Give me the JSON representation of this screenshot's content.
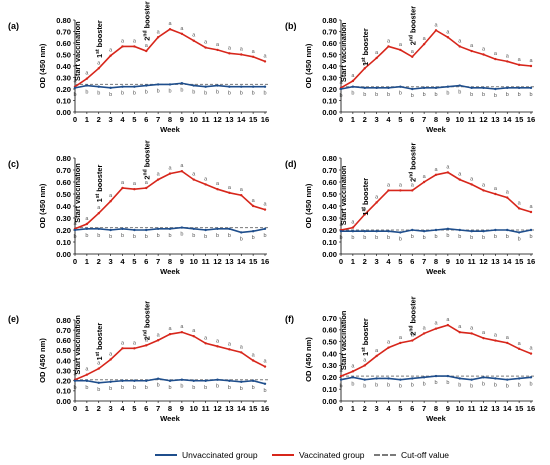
{
  "chart_data": [
    {
      "panel": "(a)",
      "type": "line",
      "ylabel": "OD (450 nm)",
      "xlabel": "Week",
      "ylim": [
        0,
        0.8
      ],
      "yticks": [
        "0.00",
        "0.10",
        "0.20",
        "0.30",
        "0.40",
        "0.50",
        "0.60",
        "0.70",
        "0.80"
      ],
      "x": [
        0,
        1,
        2,
        3,
        4,
        5,
        6,
        7,
        8,
        9,
        10,
        11,
        12,
        13,
        14,
        15,
        16
      ],
      "series": [
        {
          "name": "Vaccinated group",
          "color": "#d7261b",
          "values": [
            0.22,
            0.29,
            0.38,
            0.49,
            0.57,
            0.57,
            0.53,
            0.65,
            0.72,
            0.68,
            0.62,
            0.56,
            0.54,
            0.51,
            0.5,
            0.48,
            0.44
          ]
        },
        {
          "name": "Unvaccinated group",
          "color": "#1f4e8c",
          "values": [
            0.21,
            0.23,
            0.22,
            0.21,
            0.22,
            0.22,
            0.23,
            0.24,
            0.24,
            0.25,
            0.23,
            0.22,
            0.23,
            0.22,
            0.22,
            0.22,
            0.22
          ]
        }
      ],
      "cutoff": 0.24,
      "annotations": [
        {
          "text": "Start vaccination",
          "x": 0,
          "y": 0.27,
          "label_sup": "",
          "kind": "start"
        },
        {
          "text": "booster",
          "sup": "st",
          "num": "1",
          "x": 2,
          "y": 0.47
        },
        {
          "text": "booster",
          "sup": "nd",
          "num": "2",
          "x": 6,
          "y": 0.62
        }
      ],
      "point_labels_red": [
        "a",
        "a",
        "a",
        "a",
        "a",
        "a",
        "a",
        "a",
        "a",
        "a",
        "a",
        "a",
        "a",
        "a",
        "a",
        "a",
        "a"
      ],
      "point_labels_blue": [
        "b",
        "b",
        "b",
        "b",
        "b",
        "b",
        "b",
        "b",
        "b",
        "b",
        "b",
        "b",
        "b",
        "b",
        "b",
        "b",
        "b"
      ]
    },
    {
      "panel": "(b)",
      "type": "line",
      "ylabel": "OD (450 nm)",
      "xlabel": "Week",
      "ylim": [
        0,
        0.8
      ],
      "yticks": [
        "0.00",
        "0.10",
        "0.20",
        "0.30",
        "0.40",
        "0.50",
        "0.60",
        "0.70",
        "0.80"
      ],
      "x": [
        0,
        1,
        2,
        3,
        4,
        5,
        6,
        7,
        8,
        9,
        10,
        11,
        12,
        13,
        14,
        15,
        16
      ],
      "series": [
        {
          "name": "Vaccinated group",
          "color": "#d7261b",
          "values": [
            0.21,
            0.27,
            0.38,
            0.47,
            0.57,
            0.54,
            0.48,
            0.59,
            0.71,
            0.65,
            0.57,
            0.53,
            0.5,
            0.46,
            0.44,
            0.41,
            0.4
          ]
        },
        {
          "name": "Unvaccinated group",
          "color": "#1f4e8c",
          "values": [
            0.2,
            0.22,
            0.21,
            0.21,
            0.21,
            0.22,
            0.2,
            0.21,
            0.21,
            0.22,
            0.23,
            0.21,
            0.21,
            0.2,
            0.21,
            0.21,
            0.21
          ]
        }
      ],
      "cutoff": 0.22,
      "annotations": [
        {
          "text": "Start vaccination",
          "x": 0,
          "y": 0.26,
          "kind": "start"
        },
        {
          "text": "booster",
          "sup": "st",
          "num": "1",
          "x": 2,
          "y": 0.4
        },
        {
          "text": "booster",
          "sup": "nd",
          "num": "2",
          "x": 6,
          "y": 0.58
        }
      ],
      "point_labels_red": [
        "a",
        "a",
        "a",
        "a",
        "a",
        "a",
        "a",
        "a",
        "a",
        "a",
        "a",
        "a",
        "a",
        "a",
        "a",
        "a",
        "a"
      ],
      "point_labels_blue": [
        "b",
        "b",
        "b",
        "b",
        "b",
        "b",
        "b",
        "b",
        "b",
        "b",
        "b",
        "b",
        "b",
        "b",
        "b",
        "b",
        "b"
      ]
    },
    {
      "panel": "(c)",
      "type": "line",
      "ylabel": "OD (450 nm)",
      "xlabel": "Week",
      "ylim": [
        0,
        0.8
      ],
      "yticks": [
        "0.00",
        "0.10",
        "0.20",
        "0.30",
        "0.40",
        "0.50",
        "0.60",
        "0.70",
        "0.80"
      ],
      "x": [
        0,
        1,
        2,
        3,
        4,
        5,
        6,
        7,
        8,
        9,
        10,
        11,
        12,
        13,
        14,
        15,
        16
      ],
      "series": [
        {
          "name": "Vaccinated group",
          "color": "#d7261b",
          "values": [
            0.21,
            0.25,
            0.34,
            0.44,
            0.55,
            0.54,
            0.55,
            0.62,
            0.67,
            0.69,
            0.62,
            0.58,
            0.54,
            0.51,
            0.49,
            0.4,
            0.37
          ]
        },
        {
          "name": "Unvaccinated group",
          "color": "#1f4e8c",
          "values": [
            0.2,
            0.21,
            0.21,
            0.2,
            0.21,
            0.2,
            0.2,
            0.21,
            0.21,
            0.22,
            0.21,
            0.2,
            0.21,
            0.21,
            0.18,
            0.19,
            0.21
          ]
        }
      ],
      "cutoff": 0.22,
      "annotations": [
        {
          "text": "Start vaccination",
          "x": 0,
          "y": 0.26,
          "kind": "start"
        },
        {
          "text": "booster",
          "sup": "st",
          "num": "1",
          "x": 2,
          "y": 0.43
        },
        {
          "text": "booster",
          "sup": "nd",
          "num": "2",
          "x": 6,
          "y": 0.62
        }
      ],
      "point_labels_red": [
        "a",
        "a",
        "a",
        "a",
        "a",
        "a",
        "a",
        "a",
        "a",
        "a",
        "a",
        "a",
        "a",
        "a",
        "a",
        "a",
        "a"
      ],
      "point_labels_blue": [
        "b",
        "b",
        "b",
        "b",
        "b",
        "b",
        "b",
        "b",
        "b",
        "b",
        "b",
        "b",
        "b",
        "b",
        "b",
        "b",
        "b"
      ]
    },
    {
      "panel": "(d)",
      "type": "line",
      "ylabel": "OD (450 nm)",
      "xlabel": "Week",
      "ylim": [
        0,
        0.8
      ],
      "yticks": [
        "0.00",
        "0.10",
        "0.20",
        "0.30",
        "0.40",
        "0.50",
        "0.60",
        "0.70",
        "0.80"
      ],
      "x": [
        0,
        1,
        2,
        3,
        4,
        5,
        6,
        7,
        8,
        9,
        10,
        11,
        12,
        13,
        14,
        15,
        16
      ],
      "series": [
        {
          "name": "Vaccinated group",
          "color": "#d7261b",
          "values": [
            0.2,
            0.22,
            0.33,
            0.43,
            0.53,
            0.53,
            0.53,
            0.6,
            0.66,
            0.68,
            0.62,
            0.58,
            0.53,
            0.5,
            0.47,
            0.38,
            0.35
          ]
        },
        {
          "name": "Unvaccinated group",
          "color": "#1f4e8c",
          "values": [
            0.19,
            0.19,
            0.19,
            0.19,
            0.19,
            0.18,
            0.2,
            0.19,
            0.2,
            0.21,
            0.2,
            0.19,
            0.19,
            0.2,
            0.2,
            0.18,
            0.2
          ]
        }
      ],
      "cutoff": 0.2,
      "annotations": [
        {
          "text": "Start vaccination",
          "x": 0,
          "y": 0.24,
          "kind": "start"
        },
        {
          "text": "booster",
          "sup": "st",
          "num": "1",
          "x": 2,
          "y": 0.32
        },
        {
          "text": "booster",
          "sup": "nd",
          "num": "2",
          "x": 6,
          "y": 0.6
        }
      ],
      "point_labels_red": [
        "a",
        "a",
        "a",
        "a",
        "a",
        "a",
        "a",
        "a",
        "a",
        "a",
        "a",
        "a",
        "a",
        "a",
        "a",
        "a",
        "a"
      ],
      "point_labels_blue": [
        "b",
        "b",
        "b",
        "b",
        "b",
        "b",
        "b",
        "b",
        "b",
        "b",
        "b",
        "b",
        "b",
        "b",
        "b",
        "b",
        "b"
      ]
    },
    {
      "panel": "(e)",
      "type": "line",
      "ylabel": "OD (450 nm)",
      "xlabel": "Week",
      "ylim": [
        0,
        0.8
      ],
      "yticks": [
        "0.00",
        "0.10",
        "0.20",
        "0.30",
        "0.40",
        "0.50",
        "0.60",
        "0.70",
        "0.80"
      ],
      "x": [
        0,
        1,
        2,
        3,
        4,
        5,
        6,
        7,
        8,
        9,
        10,
        11,
        12,
        13,
        14,
        15,
        16
      ],
      "series": [
        {
          "name": "Vaccinated group",
          "color": "#d7261b",
          "values": [
            0.21,
            0.26,
            0.32,
            0.41,
            0.52,
            0.52,
            0.55,
            0.6,
            0.66,
            0.68,
            0.64,
            0.57,
            0.54,
            0.51,
            0.48,
            0.4,
            0.34
          ]
        },
        {
          "name": "Unvaccinated group",
          "color": "#1f4e8c",
          "values": [
            0.2,
            0.2,
            0.18,
            0.19,
            0.2,
            0.2,
            0.2,
            0.22,
            0.2,
            0.21,
            0.2,
            0.2,
            0.21,
            0.2,
            0.19,
            0.2,
            0.17
          ]
        }
      ],
      "cutoff": 0.21,
      "annotations": [
        {
          "text": "Start vaccination",
          "x": 0,
          "y": 0.26,
          "kind": "start"
        },
        {
          "text": "booster",
          "sup": "st",
          "num": "1",
          "x": 2,
          "y": 0.4
        },
        {
          "text": "booster",
          "sup": "nd",
          "num": "2",
          "x": 6,
          "y": 0.6
        }
      ],
      "point_labels_red": [
        "a",
        "a",
        "a",
        "a",
        "a",
        "a",
        "a",
        "a",
        "a",
        "a",
        "a",
        "a",
        "a",
        "a",
        "a",
        "a",
        "a"
      ],
      "point_labels_blue": [
        "b",
        "b",
        "b",
        "b",
        "b",
        "b",
        "b",
        "b",
        "b",
        "b",
        "b",
        "b",
        "b",
        "b",
        "b",
        "b",
        "b"
      ]
    },
    {
      "panel": "(f)",
      "type": "line",
      "ylabel": "OD (450 nm)",
      "xlabel": "Week",
      "ylim": [
        0,
        0.7
      ],
      "yticks": [
        "0.00",
        "0.10",
        "0.20",
        "0.30",
        "0.40",
        "0.50",
        "0.60",
        "0.70"
      ],
      "x": [
        0,
        1,
        2,
        3,
        4,
        5,
        6,
        7,
        8,
        9,
        10,
        11,
        12,
        13,
        14,
        15,
        16
      ],
      "series": [
        {
          "name": "Vaccinated group",
          "color": "#d7261b",
          "values": [
            0.21,
            0.25,
            0.3,
            0.38,
            0.45,
            0.49,
            0.51,
            0.57,
            0.61,
            0.64,
            0.58,
            0.57,
            0.53,
            0.51,
            0.49,
            0.44,
            0.4
          ]
        },
        {
          "name": "Unvaccinated group",
          "color": "#1f4e8c",
          "values": [
            0.18,
            0.2,
            0.18,
            0.19,
            0.19,
            0.18,
            0.19,
            0.2,
            0.21,
            0.21,
            0.19,
            0.18,
            0.2,
            0.19,
            0.18,
            0.19,
            0.2
          ]
        }
      ],
      "cutoff": 0.21,
      "annotations": [
        {
          "text": "Start vaccination",
          "x": 0,
          "y": 0.26,
          "kind": "start"
        },
        {
          "text": "booster",
          "sup": "st",
          "num": "1",
          "x": 2,
          "y": 0.38
        },
        {
          "text": "booster",
          "sup": "nd",
          "num": "2",
          "x": 6,
          "y": 0.55
        }
      ],
      "point_labels_red": [
        "a",
        "a",
        "a",
        "a",
        "a",
        "a",
        "a",
        "a",
        "a",
        "a",
        "a",
        "a",
        "a",
        "a",
        "a",
        "a",
        "a"
      ],
      "point_labels_blue": [
        "b",
        "b",
        "b",
        "b",
        "b",
        "b",
        "b",
        "b",
        "b",
        "b",
        "b",
        "b",
        "b",
        "b",
        "b",
        "b",
        "b"
      ]
    }
  ],
  "legend": {
    "items": [
      {
        "label": "Unvaccinated group",
        "color": "#1f4e8c",
        "style": "solid"
      },
      {
        "label": "Vaccinated group",
        "color": "#d7261b",
        "style": "solid"
      },
      {
        "label": "Cut-off value",
        "color": "#7a7a7a",
        "style": "dashed"
      }
    ]
  }
}
